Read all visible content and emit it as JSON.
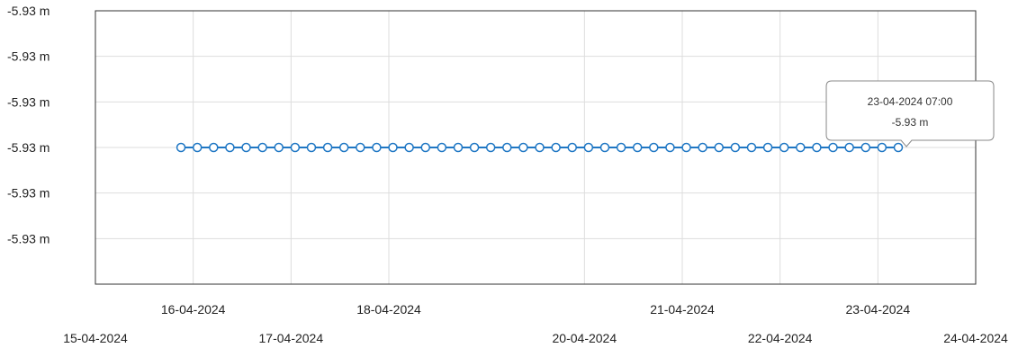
{
  "chart_data": {
    "type": "line",
    "title": "",
    "xlabel": "",
    "ylabel": "",
    "x_unit": "date",
    "xlim": [
      "2024-04-15",
      "2024-04-24"
    ],
    "ylim": [
      -5.9306,
      -5.9294
    ],
    "grid": true,
    "legend": "none",
    "y_tick_values": [
      -5.9294,
      -5.9296,
      -5.9298,
      -5.93,
      -5.9302,
      -5.9304
    ],
    "y_tick_labels": [
      "-5.93 m",
      "-5.93 m",
      "-5.93 m",
      "-5.93 m",
      "-5.93 m",
      "-5.93 m"
    ],
    "x_ticks": [
      {
        "date": "2024-04-15",
        "label": "15-04-2024"
      },
      {
        "date": "2024-04-16",
        "label": "16-04-2024"
      },
      {
        "date": "2024-04-17",
        "label": "17-04-2024"
      },
      {
        "date": "2024-04-18",
        "label": "18-04-2024"
      },
      {
        "date": "2024-04-20",
        "label": "20-04-2024"
      },
      {
        "date": "2024-04-21",
        "label": "21-04-2024"
      },
      {
        "date": "2024-04-22",
        "label": "22-04-2024"
      },
      {
        "date": "2024-04-23",
        "label": "23-04-2024"
      },
      {
        "date": "2024-04-24",
        "label": "24-04-2024"
      }
    ],
    "series": [
      {
        "color": "#1f77c4",
        "start": "2024-04-15 21:00",
        "end": "2024-04-23 07:00",
        "step_hours": 4,
        "value": -5.93
      }
    ],
    "tooltip": {
      "date_label": "23-04-2024 07:00",
      "value_label": "-5.93 m",
      "x": "2024-04-23 07:00",
      "y": -5.93
    }
  }
}
